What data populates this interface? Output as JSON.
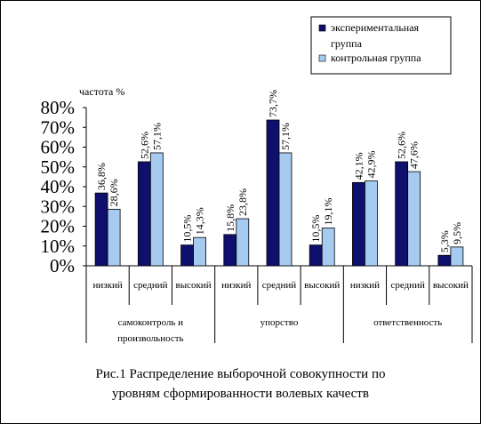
{
  "chart_data": {
    "type": "bar",
    "ylabel": "частота %",
    "ylim": [
      0,
      80
    ],
    "yticks": [
      "0%",
      "10%",
      "20%",
      "30%",
      "40%",
      "50%",
      "60%",
      "70%",
      "80%"
    ],
    "categories": [
      "низкий",
      "средний",
      "высокий",
      "низкий",
      "средний",
      "высокий",
      "низкий",
      "средний",
      "высокий"
    ],
    "groups": [
      "самоконтроль и произвольность",
      "упорство",
      "ответственность"
    ],
    "series": [
      {
        "name": "экспериментальная группа",
        "color": "#0f0f6e",
        "values": [
          36.8,
          52.6,
          10.5,
          15.8,
          73.7,
          10.5,
          42.1,
          52.6,
          5.3
        ],
        "labels": [
          "36,8%",
          "52,6%",
          "10,5%",
          "15,8%",
          "73,7%",
          "10,5%",
          "42,1%",
          "52,6%",
          "5,3%"
        ]
      },
      {
        "name": "контрольная группа",
        "color": "#a6caf0",
        "values": [
          28.6,
          57.1,
          14.3,
          23.8,
          57.1,
          19.1,
          42.9,
          47.6,
          9.5
        ],
        "labels": [
          "28,6%",
          "57,1%",
          "14,3%",
          "23,8%",
          "57,1%",
          "19,1%",
          "42,9%",
          "47,6%",
          "9,5%"
        ]
      }
    ],
    "legend_position": "top-right",
    "grid": false
  },
  "caption": {
    "line1": "Рис.1 Распределение выборочной совокупности по",
    "line2": "уровням сформированности волевых качеств"
  }
}
